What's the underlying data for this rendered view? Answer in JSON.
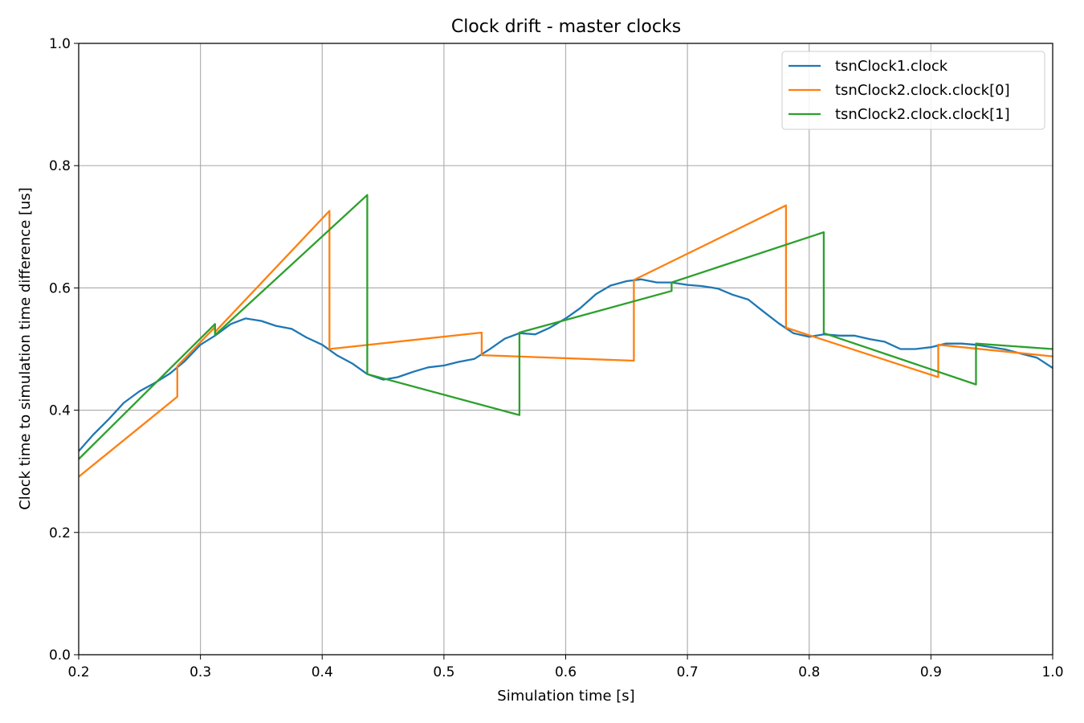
{
  "chart_data": {
    "type": "line",
    "title": "Clock drift - master clocks",
    "xlabel": "Simulation time [s]",
    "ylabel": "Clock time to simulation time difference [us]",
    "xlim": [
      0.2,
      1.0
    ],
    "ylim": [
      0.0,
      1.0
    ],
    "xticks": [
      "0.2",
      "0.3",
      "0.4",
      "0.5",
      "0.6",
      "0.7",
      "0.8",
      "0.9",
      "1.0"
    ],
    "yticks": [
      "0.0",
      "0.2",
      "0.4",
      "0.6",
      "0.8",
      "1.0"
    ],
    "grid": true,
    "legend_position": "top-right",
    "series": [
      {
        "name": "tsnClock1.clock",
        "color": "#1f77b4",
        "points": [
          [
            0.2,
            0.333
          ],
          [
            0.212,
            0.36
          ],
          [
            0.225,
            0.386
          ],
          [
            0.237,
            0.412
          ],
          [
            0.25,
            0.431
          ],
          [
            0.262,
            0.444
          ],
          [
            0.275,
            0.46
          ],
          [
            0.287,
            0.48
          ],
          [
            0.3,
            0.507
          ],
          [
            0.312,
            0.522
          ],
          [
            0.325,
            0.541
          ],
          [
            0.337,
            0.55
          ],
          [
            0.35,
            0.546
          ],
          [
            0.362,
            0.538
          ],
          [
            0.375,
            0.533
          ],
          [
            0.387,
            0.519
          ],
          [
            0.4,
            0.507
          ],
          [
            0.412,
            0.49
          ],
          [
            0.425,
            0.476
          ],
          [
            0.437,
            0.459
          ],
          [
            0.45,
            0.45
          ],
          [
            0.462,
            0.454
          ],
          [
            0.475,
            0.463
          ],
          [
            0.487,
            0.47
          ],
          [
            0.5,
            0.473
          ],
          [
            0.512,
            0.479
          ],
          [
            0.525,
            0.484
          ],
          [
            0.537,
            0.499
          ],
          [
            0.55,
            0.517
          ],
          [
            0.562,
            0.526
          ],
          [
            0.575,
            0.524
          ],
          [
            0.587,
            0.535
          ],
          [
            0.6,
            0.55
          ],
          [
            0.612,
            0.567
          ],
          [
            0.625,
            0.59
          ],
          [
            0.637,
            0.604
          ],
          [
            0.65,
            0.611
          ],
          [
            0.662,
            0.614
          ],
          [
            0.675,
            0.609
          ],
          [
            0.687,
            0.609
          ],
          [
            0.7,
            0.605
          ],
          [
            0.712,
            0.603
          ],
          [
            0.725,
            0.599
          ],
          [
            0.737,
            0.589
          ],
          [
            0.75,
            0.581
          ],
          [
            0.762,
            0.562
          ],
          [
            0.775,
            0.542
          ],
          [
            0.787,
            0.526
          ],
          [
            0.8,
            0.52
          ],
          [
            0.812,
            0.524
          ],
          [
            0.825,
            0.522
          ],
          [
            0.837,
            0.522
          ],
          [
            0.85,
            0.516
          ],
          [
            0.862,
            0.512
          ],
          [
            0.875,
            0.5
          ],
          [
            0.887,
            0.5
          ],
          [
            0.9,
            0.503
          ],
          [
            0.912,
            0.509
          ],
          [
            0.925,
            0.509
          ],
          [
            0.937,
            0.507
          ],
          [
            0.95,
            0.503
          ],
          [
            0.962,
            0.499
          ],
          [
            0.975,
            0.492
          ],
          [
            0.987,
            0.486
          ],
          [
            1.0,
            0.469
          ]
        ]
      },
      {
        "name": "tsnClock2.clock.clock[0]",
        "color": "#ff7f0e",
        "points": [
          [
            0.2,
            0.291
          ],
          [
            0.281,
            0.422
          ],
          [
            0.281,
            0.472
          ],
          [
            0.312,
            0.536
          ],
          [
            0.312,
            0.528
          ],
          [
            0.406,
            0.726
          ],
          [
            0.406,
            0.5
          ],
          [
            0.531,
            0.527
          ],
          [
            0.531,
            0.49
          ],
          [
            0.656,
            0.481
          ],
          [
            0.656,
            0.613
          ],
          [
            0.781,
            0.735
          ],
          [
            0.781,
            0.535
          ],
          [
            0.906,
            0.454
          ],
          [
            0.906,
            0.507
          ],
          [
            1.0,
            0.488
          ]
        ]
      },
      {
        "name": "tsnClock2.clock.clock[1]",
        "color": "#2ca02c",
        "points": [
          [
            0.2,
            0.32
          ],
          [
            0.312,
            0.541
          ],
          [
            0.312,
            0.523
          ],
          [
            0.437,
            0.752
          ],
          [
            0.437,
            0.459
          ],
          [
            0.562,
            0.392
          ],
          [
            0.562,
            0.527
          ],
          [
            0.687,
            0.595
          ],
          [
            0.687,
            0.609
          ],
          [
            0.812,
            0.691
          ],
          [
            0.812,
            0.526
          ],
          [
            0.937,
            0.442
          ],
          [
            0.937,
            0.509
          ],
          [
            1.0,
            0.5
          ]
        ]
      }
    ]
  }
}
